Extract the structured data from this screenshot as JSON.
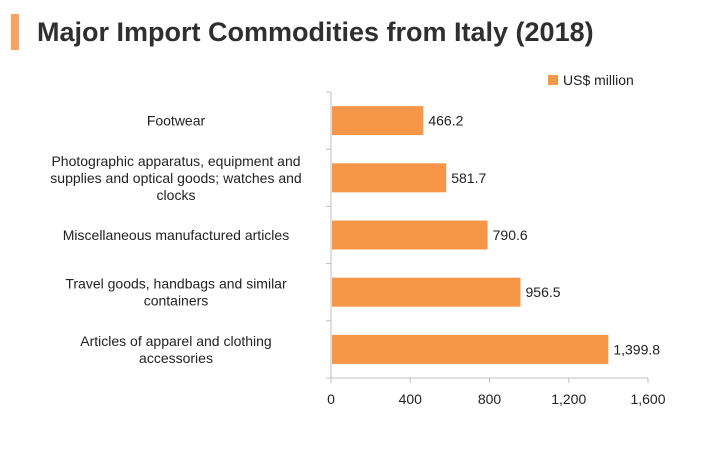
{
  "title": "Major Import Commodities from Italy (2018)",
  "colors": {
    "accent": "#f7a35c",
    "bar": "#f79646",
    "axis": "#bfbfbf"
  },
  "legend_label": "US$ million",
  "chart_data": {
    "type": "bar",
    "orientation": "horizontal",
    "title": "Major Import Commodities from Italy (2018)",
    "categories": [
      [
        "Footwear"
      ],
      [
        "Photographic apparatus, equipment and",
        "supplies and optical goods; watches and",
        "clocks"
      ],
      [
        "Miscellaneous manufactured articles"
      ],
      [
        "Travel goods, handbags and similar",
        "containers"
      ],
      [
        "Articles of apparel and clothing",
        "accessories"
      ]
    ],
    "series": [
      {
        "name": "US$ million",
        "values": [
          466.2,
          581.7,
          790.6,
          956.5,
          1399.8
        ]
      }
    ],
    "data_labels": [
      "466.2",
      "581.7",
      "790.6",
      "956.5",
      "1,399.8"
    ],
    "xlim": [
      0,
      1600
    ],
    "xticks": [
      0,
      400,
      800,
      1200,
      1600
    ],
    "xtick_labels": [
      "0",
      "400",
      "800",
      "1,200",
      "1,600"
    ],
    "grid": false,
    "legend_position": "top-right"
  }
}
